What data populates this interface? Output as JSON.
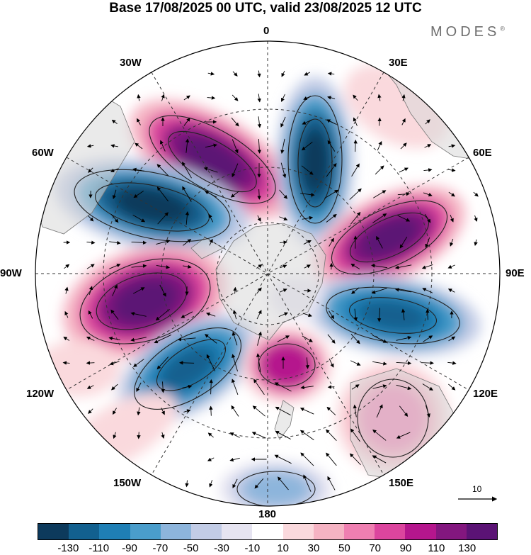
{
  "title": "Base 17/08/2025 00 UTC, valid 23/08/2025 12 UTC",
  "brand": "MODES",
  "brand_mark": "®",
  "longitude_labels": {
    "lon_0": "0",
    "lon_30e": "30E",
    "lon_60e": "60E",
    "lon_90e": "90E",
    "lon_120e": "120E",
    "lon_150e": "150E",
    "lon_180": "180",
    "lon_150w": "150W",
    "lon_120w": "120W",
    "lon_90w": "90W",
    "lon_60w": "60W",
    "lon_30w": "30W"
  },
  "reference_vector": {
    "label": "10"
  },
  "colorbar": {
    "colors": [
      "#0d3a5c",
      "#12608f",
      "#1f7fb5",
      "#4a9dcb",
      "#8db5dc",
      "#c2cce6",
      "#e6e4f1",
      "#ffffff",
      "#fad9dd",
      "#f5b3c3",
      "#ef7fb1",
      "#dc459e",
      "#b5168d",
      "#83177f",
      "#5b1375"
    ],
    "tick_labels": [
      "-130",
      "-110",
      "-90",
      "-70",
      "-50",
      "-30",
      "-10",
      "10",
      "30",
      "50",
      "70",
      "90",
      "110",
      "130"
    ]
  },
  "anomaly_centers": [
    {
      "sign": "positive",
      "value": 130,
      "region": "South Atlantic, 30W-0"
    },
    {
      "sign": "negative",
      "value": -130,
      "region": "South Atlantic, 0-30E"
    },
    {
      "sign": "positive",
      "value": 130,
      "region": "Indian Ocean, 60E"
    },
    {
      "sign": "negative",
      "value": -110,
      "region": "Indian Ocean, 90E-120E"
    },
    {
      "sign": "positive",
      "value": 90,
      "region": "Ross Sea, 180"
    },
    {
      "sign": "positive",
      "value": 50,
      "region": "Australia, 120E-150E"
    },
    {
      "sign": "negative",
      "value": -70,
      "region": "South Pacific, 150W-180"
    },
    {
      "sign": "negative",
      "value": -110,
      "region": "South Pacific, 120W-150W"
    },
    {
      "sign": "positive",
      "value": 130,
      "region": "South Pacific, 90W"
    },
    {
      "sign": "negative",
      "value": -130,
      "region": "Drake Passage, 60W"
    },
    {
      "sign": "negative",
      "value": -30,
      "region": "Pacific, 150W"
    }
  ]
}
